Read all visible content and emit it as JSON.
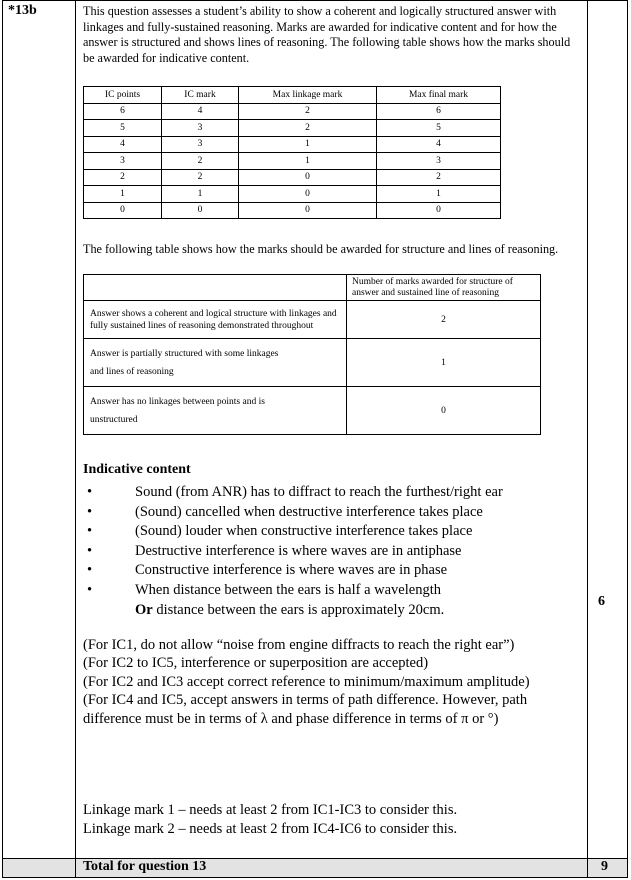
{
  "question": {
    "number": "*13b",
    "max_mark": "6"
  },
  "intro": "This question assesses a student’s ability to show a coherent and logically structured answer with linkages and fully-sustained reasoning. Marks are awarded for indicative content and for how the answer is structured and shows lines of reasoning. The following table shows how the marks should be awarded for indicative content.",
  "ic_table": {
    "headers": [
      "IC points",
      "IC mark",
      "Max linkage mark",
      "Max final mark"
    ],
    "rows": [
      [
        "6",
        "4",
        "2",
        "6"
      ],
      [
        "5",
        "3",
        "2",
        "5"
      ],
      [
        "4",
        "3",
        "1",
        "4"
      ],
      [
        "3",
        "2",
        "1",
        "3"
      ],
      [
        "2",
        "2",
        "0",
        "2"
      ],
      [
        "1",
        "1",
        "0",
        "1"
      ],
      [
        "0",
        "0",
        "0",
        "0"
      ]
    ]
  },
  "structure_intro": "The following table shows how the marks should be awarded for structure and lines of reasoning.",
  "structure_table": {
    "header": "Number of marks awarded for structure of answer and sustained line of reasoning",
    "rows": [
      {
        "desc": "Answer shows a coherent and logical structure with linkages and fully sustained lines of reasoning demonstrated throughout",
        "marks": "2"
      },
      {
        "desc": "Answer is partially structured with some linkages and lines of reasoning",
        "marks": "1"
      },
      {
        "desc": "Answer has no linkages between points and is unstructured",
        "marks": "0"
      }
    ]
  },
  "indicative": {
    "heading": "Indicative content",
    "bullets": [
      "Sound (from ANR) has to diffract to reach the furthest/right ear",
      "(Sound) cancelled when destructive interference takes place",
      "(Sound) louder when constructive interference takes place",
      "Destructive interference is where waves are in antiphase",
      "Constructive interference is where waves are in phase",
      "When distance between the ears is half a wavelength"
    ],
    "or_word": "Or",
    "or_text": " distance between the ears is approximately 20cm."
  },
  "notes": [
    "(For IC1, do not allow “noise from engine diffracts to reach the right ear”)",
    "(For IC2 to IC5, interference or superposition are accepted)",
    "(For IC2 and IC3 accept correct reference to minimum/maximum amplitude)",
    "(For IC4 and IC5, accept answers in terms of path difference. However, path difference must be in terms of λ and phase difference in terms of π or °)"
  ],
  "linkage": [
    "Linkage mark 1 – needs at least 2 from IC1-IC3 to consider this.",
    "Linkage mark 2 – needs at least 2 from IC4-IC6 to consider this."
  ],
  "total": {
    "label": "Total for question 13",
    "mark": "9"
  }
}
